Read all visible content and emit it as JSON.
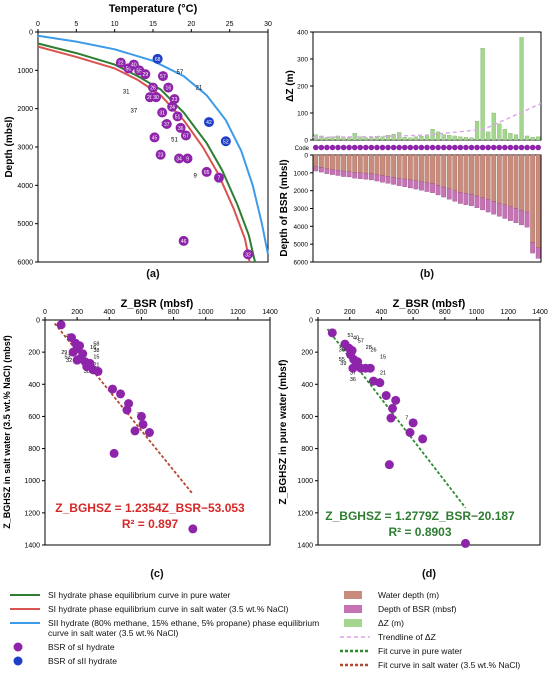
{
  "panels": {
    "a": {
      "label": "(a)",
      "x_title": "Temperature (°C)",
      "y_title": "Depth (mbsl)",
      "xlim": [
        0,
        30
      ],
      "ylim": [
        0,
        6000
      ],
      "x_ticks": [
        "0",
        "5",
        "10",
        "15",
        "20",
        "25",
        "30"
      ],
      "y_ticks": [
        "0",
        "1000",
        "2000",
        "3000",
        "4000",
        "5000",
        "6000"
      ],
      "curves": [
        {
          "name": "SI hydrate phase equilibrium curve in pure water",
          "color": "#2e7d32",
          "points": [
            [
              0,
              300
            ],
            [
              5,
              550
            ],
            [
              10,
              850
            ],
            [
              13,
              1150
            ],
            [
              16,
              1500
            ],
            [
              19,
              2100
            ],
            [
              22,
              2900
            ],
            [
              24,
              3600
            ],
            [
              26,
              4500
            ],
            [
              27.5,
              5300
            ],
            [
              28.3,
              6000
            ]
          ]
        },
        {
          "name": "SI hydrate phase equilibrium curve in salt water (3.5 wt.% NaCl)",
          "color": "#d9534f",
          "points": [
            [
              0,
              380
            ],
            [
              5,
              650
            ],
            [
              10,
              950
            ],
            [
              13,
              1250
            ],
            [
              16,
              1650
            ],
            [
              19,
              2300
            ],
            [
              21.5,
              3000
            ],
            [
              23.5,
              3700
            ],
            [
              25.5,
              4600
            ],
            [
              27,
              5400
            ],
            [
              27.6,
              6000
            ]
          ]
        },
        {
          "name": "SII hydrate (80% methane, 15% ethane, 5% propane) phase equilibrium curve in salt water (3.5 wt.% NaCl)",
          "color": "#3d9be9",
          "points": [
            [
              0,
              100
            ],
            [
              5,
              250
            ],
            [
              10,
              450
            ],
            [
              15,
              750
            ],
            [
              19,
              1150
            ],
            [
              22,
              1650
            ],
            [
              24.5,
              2300
            ],
            [
              26.5,
              3100
            ],
            [
              28,
              4000
            ],
            [
              29.2,
              5000
            ],
            [
              30,
              5800
            ]
          ]
        }
      ],
      "points": [
        {
          "id": "22",
          "t": 10.8,
          "d": 800,
          "type": "SI"
        },
        {
          "id": "50",
          "t": 11.8,
          "d": 950,
          "type": "SI"
        },
        {
          "id": "40",
          "t": 12.5,
          "d": 850,
          "type": "SI"
        },
        {
          "id": "55",
          "t": 13.2,
          "d": 1000,
          "type": "SI"
        },
        {
          "id": "29",
          "t": 14.0,
          "d": 1100,
          "type": "SI"
        },
        {
          "id": "68",
          "t": 15.6,
          "d": 700,
          "type": "SII"
        },
        {
          "id": "57",
          "t": 16.3,
          "d": 1150,
          "type": "SI"
        },
        {
          "id": "26",
          "t": 15.0,
          "d": 1450,
          "type": "SI"
        },
        {
          "id": "16",
          "t": 17.0,
          "d": 1450,
          "type": "SI"
        },
        {
          "id": "28",
          "t": 14.6,
          "d": 1700,
          "type": "SI"
        },
        {
          "id": "30",
          "t": 15.4,
          "d": 1700,
          "type": "SI"
        },
        {
          "id": "23",
          "t": 17.8,
          "d": 1750,
          "type": "SI"
        },
        {
          "id": "24",
          "t": 17.5,
          "d": 1950,
          "type": "SI"
        },
        {
          "id": "31",
          "t": 16.2,
          "d": 2100,
          "type": "SI"
        },
        {
          "id": "51",
          "t": 18.2,
          "d": 2200,
          "type": "SI"
        },
        {
          "id": "42",
          "t": 22.3,
          "d": 2350,
          "type": "SII"
        },
        {
          "id": "37",
          "t": 16.8,
          "d": 2400,
          "type": "SI"
        },
        {
          "id": "36",
          "t": 18.6,
          "d": 2500,
          "type": "SI"
        },
        {
          "id": "67",
          "t": 19.3,
          "d": 2700,
          "type": "SI"
        },
        {
          "id": "45",
          "t": 15.2,
          "d": 2750,
          "type": "SI"
        },
        {
          "id": "52",
          "t": 24.5,
          "d": 2850,
          "type": "SII"
        },
        {
          "id": "23",
          "t": 16.0,
          "d": 3200,
          "type": "SI"
        },
        {
          "id": "9",
          "t": 19.5,
          "d": 3300,
          "type": "SI"
        },
        {
          "id": "34",
          "t": 18.4,
          "d": 3300,
          "type": "SI"
        },
        {
          "id": "65",
          "t": 22.0,
          "d": 3650,
          "type": "SI"
        },
        {
          "id": "7",
          "t": 23.6,
          "d": 3800,
          "type": "SI"
        },
        {
          "id": "46",
          "t": 19.0,
          "d": 5450,
          "type": "SI"
        },
        {
          "id": "32",
          "t": 27.4,
          "d": 5800,
          "type": "SI"
        }
      ],
      "callouts": [
        {
          "text": "57",
          "t": 18.5,
          "d": 1100
        },
        {
          "text": "21",
          "t": 21.0,
          "d": 1500
        },
        {
          "text": "31",
          "t": 11.5,
          "d": 1600
        },
        {
          "text": "37",
          "t": 12.5,
          "d": 2100
        },
        {
          "text": "36",
          "t": 16.5,
          "d": 2450
        },
        {
          "text": "51",
          "t": 17.8,
          "d": 2850
        },
        {
          "text": "9",
          "t": 20.5,
          "d": 3800
        }
      ]
    },
    "b": {
      "label": "(b)",
      "top_y_title": "ΔZ (m)",
      "bottom_y_title": "Depth of BSR (mbsl)",
      "code_label": "Code",
      "top_ylim": [
        0,
        400
      ],
      "top_ticks": [
        "0",
        "100",
        "200",
        "300",
        "400"
      ],
      "bottom_ylim": [
        0,
        6000
      ],
      "bottom_ticks": [
        "0",
        "1000",
        "2000",
        "3000",
        "4000",
        "5000",
        "6000"
      ],
      "water_depth": [
        650,
        700,
        780,
        820,
        850,
        900,
        930,
        980,
        1000,
        1020,
        1050,
        1100,
        1150,
        1200,
        1250,
        1300,
        1350,
        1400,
        1450,
        1500,
        1550,
        1600,
        1700,
        1800,
        1900,
        2000,
        2100,
        2150,
        2200,
        2300,
        2400,
        2500,
        2600,
        2700,
        2800,
        2900,
        3000,
        3100,
        3200,
        4900,
        5200
      ],
      "bsr_extra": [
        250,
        260,
        270,
        280,
        300,
        310,
        300,
        320,
        330,
        340,
        350,
        360,
        380,
        390,
        400,
        420,
        430,
        450,
        460,
        480,
        500,
        520,
        540,
        560,
        580,
        600,
        620,
        640,
        650,
        660,
        680,
        700,
        720,
        740,
        760,
        780,
        800,
        820,
        850,
        600,
        600
      ],
      "delta_z": [
        20,
        15,
        10,
        12,
        15,
        8,
        10,
        25,
        12,
        8,
        10,
        14,
        12,
        18,
        22,
        28,
        10,
        8,
        12,
        14,
        18,
        40,
        30,
        20,
        18,
        15,
        12,
        10,
        8,
        70,
        340,
        30,
        100,
        60,
        40,
        25,
        20,
        380,
        15,
        10,
        12
      ],
      "trend": [
        [
          0,
          10
        ],
        [
          10,
          12
        ],
        [
          20,
          18
        ],
        [
          30,
          40
        ],
        [
          40,
          135
        ]
      ]
    },
    "c": {
      "label": "(c)",
      "x_title": "Z_BSR (mbsf)",
      "y_title": "Z_BGHSZ in salt water (3.5 wt.% NaCl) (mbsf)",
      "xlim": [
        0,
        1400
      ],
      "ylim": [
        0,
        1400
      ],
      "ticks": [
        "0",
        "200",
        "400",
        "600",
        "800",
        "1000",
        "1200",
        "1400"
      ],
      "equation": "Z_BGHSZ = 1.2354Z_BSR−53.053",
      "r2": "R² = 0.897",
      "fit": {
        "slope": 1.2354,
        "intercept": -53.053,
        "x_range": [
          60,
          920
        ],
        "color": "#b5482f"
      },
      "points": [
        [
          100,
          30
        ],
        [
          165,
          110
        ],
        [
          190,
          145
        ],
        [
          200,
          175
        ],
        [
          215,
          160
        ],
        [
          175,
          200
        ],
        [
          235,
          210
        ],
        [
          220,
          240
        ],
        [
          250,
          260
        ],
        [
          260,
          290
        ],
        [
          300,
          310
        ],
        [
          330,
          320
        ],
        [
          200,
          250
        ],
        [
          280,
          270
        ],
        [
          420,
          430
        ],
        [
          470,
          460
        ],
        [
          520,
          520
        ],
        [
          510,
          560
        ],
        [
          600,
          600
        ],
        [
          610,
          650
        ],
        [
          560,
          690
        ],
        [
          650,
          700
        ],
        [
          430,
          830
        ],
        [
          920,
          1300
        ]
      ],
      "labels": [
        {
          "text": "49",
          "x": 150,
          "y": 110
        },
        {
          "text": "29",
          "x": 120,
          "y": 210
        },
        {
          "text": "53",
          "x": 140,
          "y": 240
        },
        {
          "text": "32",
          "x": 150,
          "y": 260
        },
        {
          "text": "30",
          "x": 260,
          "y": 330
        },
        {
          "text": "15",
          "x": 320,
          "y": 240
        },
        {
          "text": "21",
          "x": 320,
          "y": 290
        },
        {
          "text": "16",
          "x": 300,
          "y": 180
        },
        {
          "text": "58",
          "x": 320,
          "y": 160
        },
        {
          "text": "38",
          "x": 320,
          "y": 200
        },
        {
          "text": "7",
          "x": 580,
          "y": 600
        }
      ]
    },
    "d": {
      "label": "(d)",
      "x_title": "Z_BSR (mbsf)",
      "y_title": "Z_BGHSZ in pure water (mbsf)",
      "xlim": [
        0,
        1400
      ],
      "ylim": [
        0,
        1400
      ],
      "ticks": [
        "0",
        "200",
        "400",
        "600",
        "800",
        "1000",
        "1200",
        "1400"
      ],
      "equation": "Z_BGHSZ = 1.2779Z_BSR−20.187",
      "r2": "R² = 0.8903",
      "fit": {
        "slope": 1.2779,
        "intercept": -20.187,
        "x_range": [
          60,
          930
        ],
        "color": "#2e8b2e"
      },
      "points": [
        [
          90,
          80
        ],
        [
          170,
          150
        ],
        [
          195,
          175
        ],
        [
          215,
          190
        ],
        [
          205,
          215
        ],
        [
          225,
          245
        ],
        [
          250,
          260
        ],
        [
          240,
          280
        ],
        [
          270,
          300
        ],
        [
          300,
          300
        ],
        [
          330,
          300
        ],
        [
          220,
          300
        ],
        [
          350,
          380
        ],
        [
          390,
          390
        ],
        [
          430,
          470
        ],
        [
          490,
          500
        ],
        [
          470,
          550
        ],
        [
          460,
          610
        ],
        [
          600,
          640
        ],
        [
          580,
          700
        ],
        [
          660,
          740
        ],
        [
          450,
          900
        ],
        [
          930,
          1390
        ]
      ],
      "labels": [
        {
          "text": "51",
          "x": 205,
          "y": 105
        },
        {
          "text": "40",
          "x": 240,
          "y": 120
        },
        {
          "text": "57",
          "x": 270,
          "y": 140
        },
        {
          "text": "30",
          "x": 150,
          "y": 195
        },
        {
          "text": "55",
          "x": 150,
          "y": 255
        },
        {
          "text": "39",
          "x": 160,
          "y": 280
        },
        {
          "text": "37",
          "x": 220,
          "y": 340
        },
        {
          "text": "36",
          "x": 220,
          "y": 380
        },
        {
          "text": "15",
          "x": 410,
          "y": 240
        },
        {
          "text": "21",
          "x": 410,
          "y": 340
        },
        {
          "text": "28",
          "x": 320,
          "y": 180
        },
        {
          "text": "26",
          "x": 350,
          "y": 195
        },
        {
          "text": "7",
          "x": 560,
          "y": 620
        }
      ]
    }
  },
  "legend": {
    "left": [
      {
        "text": "SI hydrate phase equilibrium curve in pure water",
        "kind": "line",
        "color": "#2e7d32"
      },
      {
        "text": "SI hydrate phase equilibrium curve in salt water (3.5 wt.% NaCl)",
        "kind": "line",
        "color": "#d9534f"
      },
      {
        "text": "SII hydrate (80% methane, 15% ethane, 5% propane) phase equilibrium curve in salt water (3.5 wt.% NaCl)",
        "kind": "line",
        "color": "#3d9be9"
      },
      {
        "text": "BSR of sI hydrate",
        "kind": "dot",
        "color": "#8e24aa"
      },
      {
        "text": "BSR of sII hydrate",
        "kind": "dot",
        "color": "#1f3fc9"
      }
    ],
    "right": [
      {
        "text": "Water depth (m)",
        "kind": "box",
        "color": "#c98b7c"
      },
      {
        "text": "Depth of BSR (mbsf)",
        "kind": "box",
        "color": "#c573b5"
      },
      {
        "text": "ΔZ (m)",
        "kind": "box",
        "color": "#a5d68f"
      },
      {
        "text": "Trendline of ΔZ",
        "kind": "dash",
        "color": "#d9a6e8"
      },
      {
        "text": "Fit curve in pure water",
        "kind": "dot-line",
        "color": "#2e8b2e"
      },
      {
        "text": "Fit curve in salt water (3.5 wt.% NaCl)",
        "kind": "dot-line",
        "color": "#b5482f"
      }
    ]
  },
  "colors": {
    "si": "#8e24aa",
    "sii": "#1f3fc9",
    "water": "#c98b7c",
    "bsr": "#c573b5",
    "dz": "#a5d68f"
  }
}
